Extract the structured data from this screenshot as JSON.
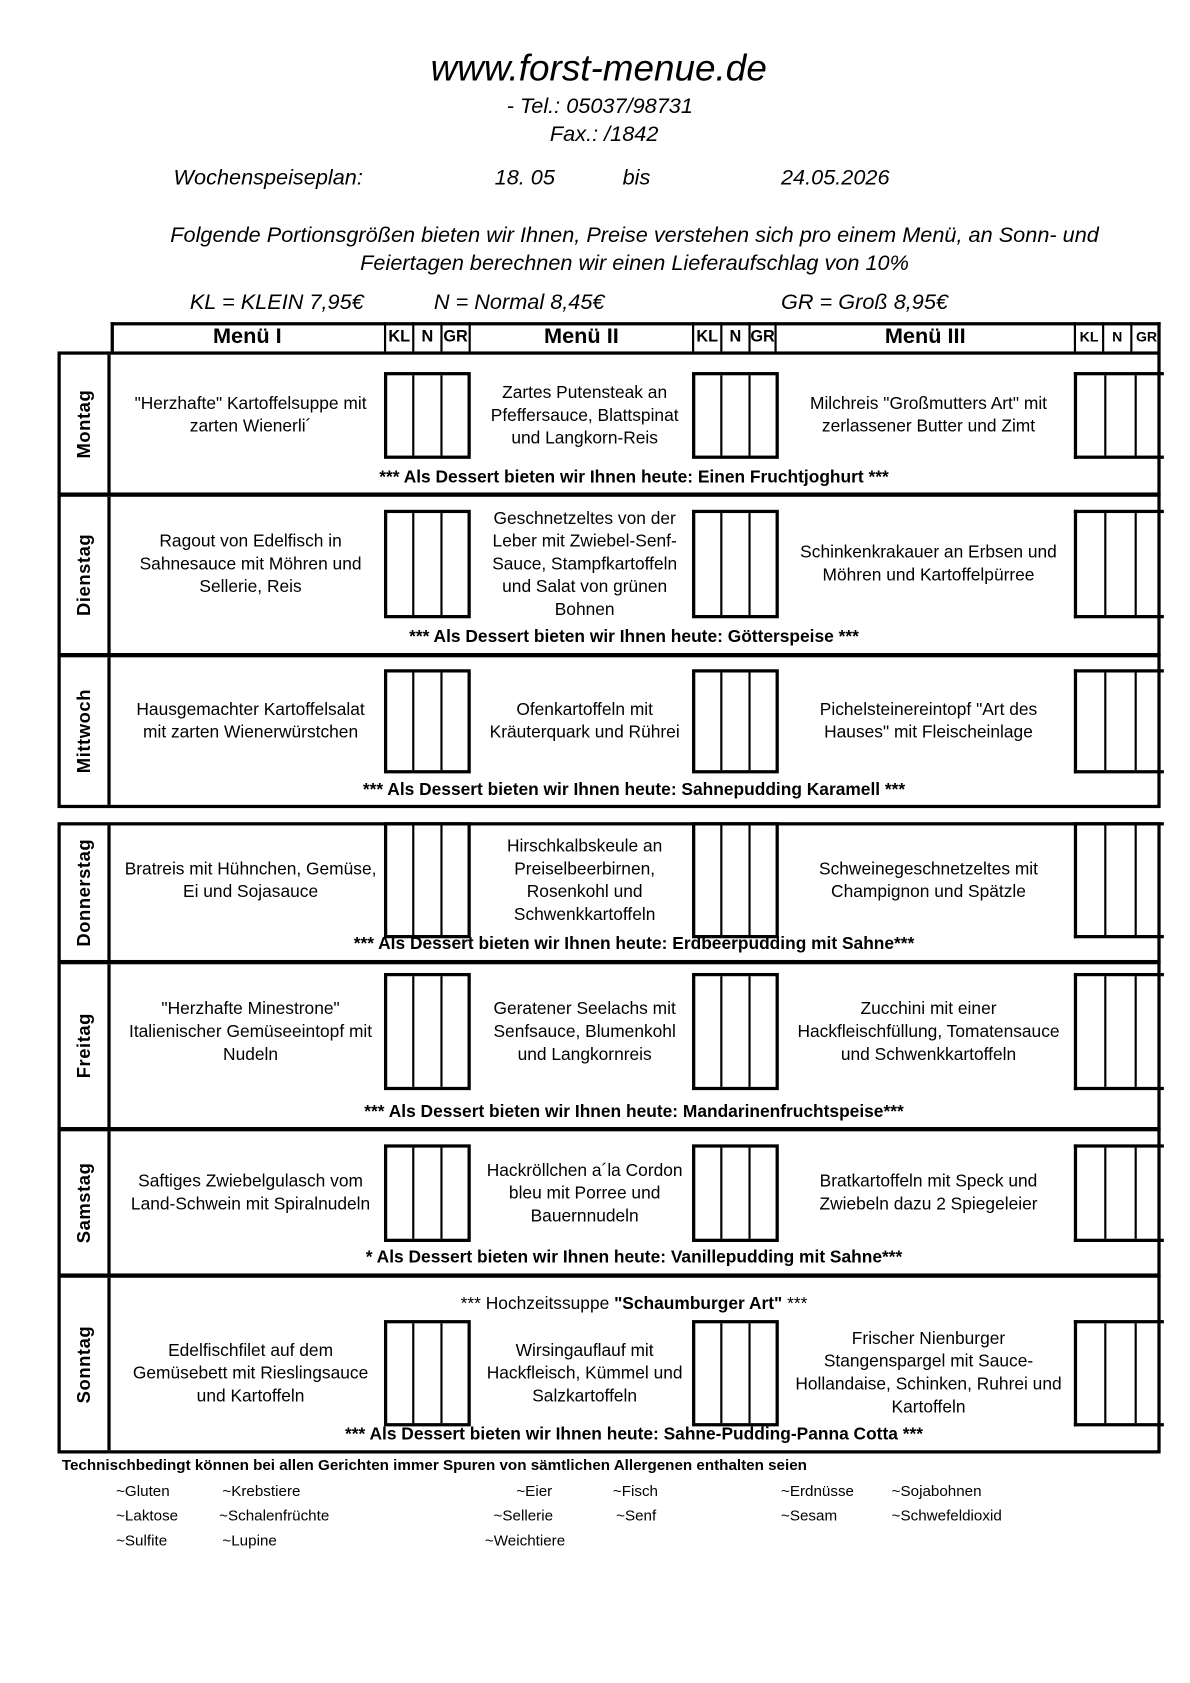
{
  "header": {
    "website": "www.forst-menue.de",
    "tel": "- Tel.: 05037/98731",
    "fax": "Fax.: /1842",
    "plan_label": "Wochenspeiseplan:",
    "date_from": "18. 05",
    "date_sep": "bis",
    "date_to": "24.05.2026",
    "info_line1": "Folgende Portionsgrößen bieten wir Ihnen, Preise verstehen sich pro einem Menü, an Sonn- und",
    "info_line2": "Feiertagen berechnen wir einen Lieferaufschlag von 10%",
    "price_kl": "KL = KLEIN 7,95€",
    "price_n": "N = Normal 8,45€",
    "price_gr": "GR = Groß 8,95€"
  },
  "table_header": {
    "menu1": "Menü I",
    "menu2": "Menü II",
    "menu3": "Menü III",
    "kl": "KL",
    "n": "N",
    "gr": "GR"
  },
  "days": [
    {
      "name": "Montag",
      "menu1": "\"Herzhafte\" Kartoffelsuppe mit\nzarten Wienerli´",
      "menu2": "Zartes Putensteak  an\nPfeffersauce, Blattspinat\nund Langkorn-Reis",
      "menu3": "Milchreis \"Großmutters Art\" mit\nzerlassener Butter und Zimt",
      "dessert": "*** Als Dessert bieten wir Ihnen heute: Einen Fruchtjoghurt ***"
    },
    {
      "name": "Dienstag",
      "menu1": "Ragout von Edelfisch in\nSahnesauce mit Möhren und\nSellerie, Reis",
      "menu2": "Geschnetzeltes von der\nLeber mit Zwiebel-Senf-\nSauce, Stampfkartoffeln\nund Salat von grünen\nBohnen",
      "menu3": "Schinkenkrakauer an Erbsen und\nMöhren und Kartoffelpürree",
      "dessert": "*** Als Dessert bieten wir Ihnen heute: Götterspeise ***"
    },
    {
      "name": "Mittwoch",
      "menu1": "Hausgemachter Kartoffelsalat\nmit zarten Wienerwürstchen",
      "menu2": "Ofenkartoffeln mit\nKräuterquark und Rührei",
      "menu3": "Pichelsteinereintopf \"Art des\nHauses\" mit Fleischeinlage",
      "dessert": "*** Als Dessert bieten wir Ihnen heute: Sahnepudding Karamell ***"
    },
    {
      "name": "Donnerstag",
      "menu1": "Bratreis mit Hühnchen, Gemüse,\nEi und Sojasauce",
      "menu2": "Hirschkalbskeule an\nPreiselbeerbirnen,\nRosenkohl  und\nSchwenkkartoffeln",
      "menu3": "Schweinegeschnetzeltes mit\nChampignon und Spätzle",
      "dessert": "*** Als Dessert bieten wir Ihnen heute: Erdbeerpudding mit Sahne***"
    },
    {
      "name": "Freitag",
      "menu1": "\"Herzhafte Minestrone\"\nItalienischer Gemüseeintopf mit\nNudeln",
      "menu2": "Geratener Seelachs mit\nSenfsauce, Blumenkohl\nund Langkornreis",
      "menu3": "Zucchini mit einer\nHackfleischfüllung, Tomatensauce\nund Schwenkkartoffeln",
      "dessert": "*** Als Dessert bieten wir Ihnen heute: Mandarinenfruchtspeise***"
    },
    {
      "name": "Samstag",
      "menu1": "Saftiges Zwiebelgulasch vom\nLand-Schwein mit Spiralnudeln",
      "menu2": "Hackröllchen a´la Cordon\nbleu mit Porree und\nBauernnudeln",
      "menu3": "Bratkartoffeln mit Speck und\nZwiebeln dazu 2 Spiegeleier",
      "dessert": "* Als Dessert bieten wir Ihnen heute: Vanillepudding mit Sahne***"
    },
    {
      "name": "Sonntag",
      "soup_pre": "*** Hochzeitssuppe ",
      "soup_name": "\"Schaumburger Art\"",
      "soup_post": " ***",
      "menu1": "Edelfischfilet auf dem\nGemüsebett mit Rieslingsauce\nund Kartoffeln",
      "menu2": "Wirsingauflauf mit\nHackfleisch, Kümmel und\nSalzkartoffeln",
      "menu3": "Frischer Nienburger\nStangenspargel mit Sauce-\nHollandaise, Schinken, Ruhrei und\nKartoffeln",
      "dessert": "*** Als Dessert bieten wir Ihnen heute: Sahne-Pudding-Panna Cotta ***"
    }
  ],
  "footer": {
    "allergen_note": "Technischbedingt können bei allen Gerichten immer Spuren von sämtlichen Allergenen enthalten seien",
    "allergens": [
      "~Gluten",
      "~Krebstiere",
      "~Eier",
      "~Fisch",
      "~Erdnüsse",
      "~Sojabohnen",
      "~Laktose",
      "~Schalenfrüchte",
      "~Sellerie",
      "~Senf",
      "~Sesam",
      "~Schwefeldioxid",
      "~Sulfite",
      "~Lupine",
      "~Weichtiere"
    ]
  }
}
